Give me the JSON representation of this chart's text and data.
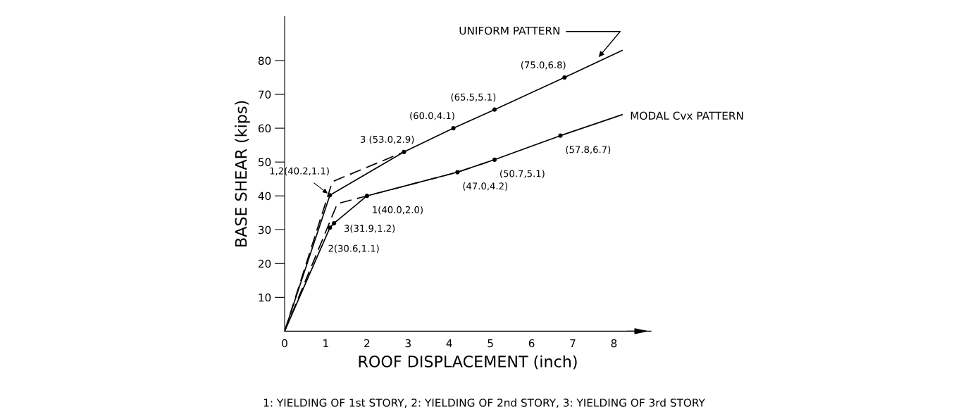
{
  "chart_data": {
    "type": "line",
    "xlabel": "ROOF DISPLACEMENT (inch)",
    "ylabel": "BASE SHEAR (kips)",
    "xlim": [
      0,
      8.9
    ],
    "ylim": [
      0,
      93
    ],
    "xticks": [
      0,
      1,
      2,
      3,
      4,
      5,
      6,
      7,
      8
    ],
    "yticks": [
      10,
      20,
      30,
      40,
      50,
      60,
      70,
      80
    ],
    "grid": false,
    "tick_labels": true,
    "series": [
      {
        "name": "UNIFORM PATTERN",
        "color": "#000000",
        "x": [
          0,
          1.1,
          2.9,
          4.1,
          5.1,
          6.8,
          8.2
        ],
        "values": [
          0,
          40.2,
          53.0,
          60.0,
          65.5,
          75.0,
          83
        ],
        "line_style": "solid",
        "marker": "none"
      },
      {
        "name": "MODAL Cvx PATTERN",
        "color": "#000000",
        "x": [
          0,
          1.1,
          1.2,
          2.0,
          4.2,
          5.1,
          6.7,
          8.2
        ],
        "values": [
          0,
          30.6,
          31.9,
          40.0,
          47.0,
          50.7,
          57.8,
          64
        ],
        "line_style": "solid",
        "marker": "none"
      },
      {
        "color": "#000000",
        "x": [
          0,
          1.16,
          2.9
        ],
        "values": [
          0,
          44.2,
          53.0
        ],
        "line_style": "dashed",
        "marker": "none"
      },
      {
        "color": "#000000",
        "x": [
          0,
          1.28,
          2.0,
          4.2,
          5.1
        ],
        "values": [
          0,
          37.7,
          40.0,
          47.0,
          50.7
        ],
        "line_style": "dashed",
        "marker": "none"
      },
      {
        "type": "scatter",
        "color": "#000000",
        "x": [
          1.1,
          2.9,
          4.1,
          5.1,
          6.8,
          1.1,
          1.2,
          2.0,
          4.2,
          5.1,
          6.7
        ],
        "values": [
          40.2,
          53.0,
          60.0,
          65.5,
          75.0,
          30.6,
          31.9,
          40.0,
          47.0,
          50.7,
          57.8
        ],
        "marker": "circle"
      }
    ],
    "annotations": [
      {
        "text": "1,2(40.2,1.1)",
        "x": 1.1,
        "y": 40.2
      },
      {
        "text": "3 (53.0,2.9)",
        "x": 2.9,
        "y": 53.0
      },
      {
        "text": "(60.0,4.1)",
        "x": 4.1,
        "y": 60.0
      },
      {
        "text": "(65.5,5.1)",
        "x": 5.1,
        "y": 65.5
      },
      {
        "text": "(75.0,6.8)",
        "x": 6.8,
        "y": 75.0
      },
      {
        "text": "2(30.6,1.1)",
        "x": 1.1,
        "y": 30.6
      },
      {
        "text": "3(31.9,1.2)",
        "x": 1.2,
        "y": 31.9
      },
      {
        "text": "1(40.0,2.0)",
        "x": 2.0,
        "y": 40.0
      },
      {
        "text": "(47.0,4.2)",
        "x": 4.2,
        "y": 47.0
      },
      {
        "text": "(50.7,5.1)",
        "x": 5.1,
        "y": 50.7
      },
      {
        "text": "(57.8,6.7)",
        "x": 6.7,
        "y": 57.8
      },
      "1: YIELDING OF 1st STORY, 2: YIELDING OF 2nd STORY, 3: YIELDING OF 3rd STORY"
    ]
  }
}
